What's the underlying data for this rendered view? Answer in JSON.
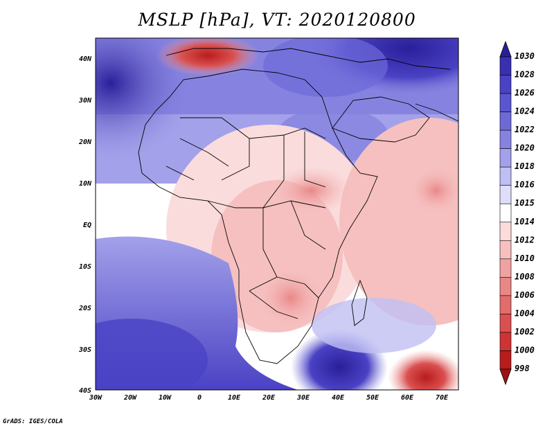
{
  "title": "MSLP [hPa], VT: 2020120800",
  "footer": "GrADS: IGES/COLA",
  "map": {
    "lon_labels": [
      "30W",
      "20W",
      "10W",
      "0",
      "10E",
      "20E",
      "30E",
      "40E",
      "50E",
      "60E",
      "70E"
    ],
    "lat_labels": [
      "40N",
      "30N",
      "20N",
      "10N",
      "EQ",
      "10S",
      "20S",
      "30S",
      "40S"
    ]
  },
  "colorbar": {
    "levels": [
      "1030",
      "1028",
      "1026",
      "1024",
      "1022",
      "1020",
      "1018",
      "1016",
      "1015",
      "1014",
      "1012",
      "1010",
      "1008",
      "1006",
      "1004",
      "1002",
      "1000",
      "998"
    ],
    "colors": [
      "#2a1f9a",
      "#3a2fb0",
      "#4a42c4",
      "#5a56cf",
      "#6d6ad8",
      "#8683e0",
      "#a3a1ea",
      "#c0bff3",
      "#dedef9",
      "#ffffff",
      "#fbdcdc",
      "#f6c0c0",
      "#f0a2a2",
      "#e98787",
      "#e26c6c",
      "#da5050",
      "#cf3434",
      "#b81c1c",
      "#9c1212"
    ]
  },
  "colors": {
    "ocean_high": "#3a2fb0",
    "land_low": "#f6c0c0",
    "border": "#000000"
  }
}
